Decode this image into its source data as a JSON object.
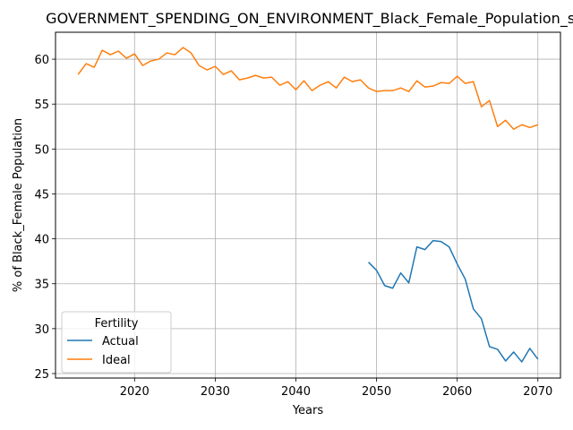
{
  "chart_data": {
    "type": "line",
    "title": "GOVERNMENT_SPENDING_ON_ENVIRONMENT_Black_Female_Population_score",
    "xlabel": "Years",
    "ylabel": "% of Black_Female Population",
    "xlim": [
      2010.2,
      2072.8
    ],
    "ylim": [
      24.5,
      63.0
    ],
    "xticks": [
      2020,
      2030,
      2040,
      2050,
      2060,
      2070
    ],
    "yticks": [
      25,
      30,
      35,
      40,
      45,
      50,
      55,
      60
    ],
    "grid": true,
    "legend": {
      "title": "Fertility",
      "position": "lower-left"
    },
    "series": [
      {
        "name": "Actual",
        "color": "#1f77b4",
        "x": [
          2049,
          2050,
          2051,
          2052,
          2053,
          2054,
          2055,
          2056,
          2057,
          2058,
          2059,
          2060,
          2061,
          2062,
          2063,
          2064,
          2065,
          2066,
          2067,
          2068,
          2069,
          2070
        ],
        "y": [
          37.4,
          36.5,
          34.8,
          34.5,
          36.2,
          35.1,
          39.1,
          38.8,
          39.8,
          39.7,
          39.1,
          37.2,
          35.5,
          32.2,
          31.1,
          28.0,
          27.7,
          26.4,
          27.4,
          26.3,
          27.8,
          26.6
        ]
      },
      {
        "name": "Ideal",
        "color": "#ff7f0e",
        "x": [
          2013,
          2014,
          2015,
          2016,
          2017,
          2018,
          2019,
          2020,
          2021,
          2022,
          2023,
          2024,
          2025,
          2026,
          2027,
          2028,
          2029,
          2030,
          2031,
          2032,
          2033,
          2034,
          2035,
          2036,
          2037,
          2038,
          2039,
          2040,
          2041,
          2042,
          2043,
          2044,
          2045,
          2046,
          2047,
          2048,
          2049,
          2050,
          2051,
          2052,
          2053,
          2054,
          2055,
          2056,
          2057,
          2058,
          2059,
          2060,
          2061,
          2062,
          2063,
          2064,
          2065,
          2066,
          2067,
          2068,
          2069,
          2070
        ],
        "y": [
          58.3,
          59.5,
          59.1,
          61.0,
          60.5,
          60.9,
          60.1,
          60.6,
          59.3,
          59.8,
          60.0,
          60.7,
          60.5,
          61.3,
          60.7,
          59.3,
          58.8,
          59.2,
          58.3,
          58.7,
          57.7,
          57.9,
          58.2,
          57.9,
          58.0,
          57.1,
          57.5,
          56.6,
          57.6,
          56.5,
          57.1,
          57.5,
          56.8,
          58.0,
          57.5,
          57.7,
          56.8,
          56.4,
          56.5,
          56.5,
          56.8,
          56.4,
          57.6,
          56.9,
          57.0,
          57.4,
          57.3,
          58.1,
          57.3,
          57.5,
          54.7,
          55.4,
          52.5,
          53.2,
          52.2,
          52.7,
          52.4,
          52.7
        ]
      }
    ]
  }
}
